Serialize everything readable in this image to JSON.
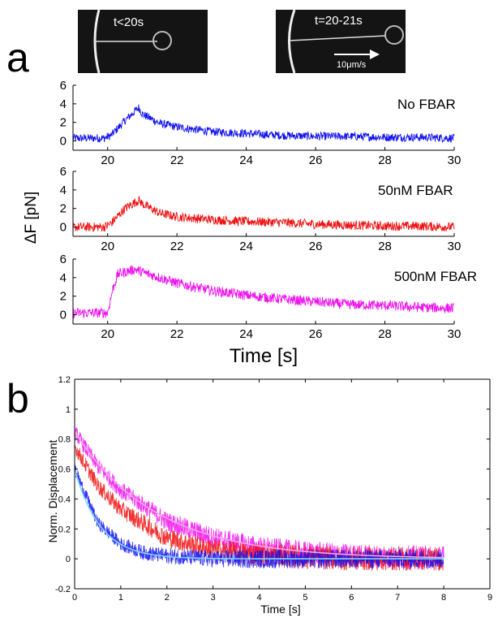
{
  "panel_letters": {
    "a": "a",
    "b": "b"
  },
  "micrographs": [
    {
      "label": "t<20s",
      "scale_label": ""
    },
    {
      "label": "t=20-21s",
      "scale_label": "10μm/s"
    }
  ],
  "colors": {
    "no_fbar": "#1010ee",
    "fbar_50nM": "#ee1111",
    "fbar_500nM": "#ee11ee",
    "fit_no_fbar": "#7ad7ff",
    "fit_500nM": "#f0a8e8",
    "axis": "#000000"
  },
  "chart_data": [
    {
      "type": "line",
      "condition_label": "No FBAR",
      "xlim": [
        19,
        30
      ],
      "ylim": [
        -1,
        6
      ],
      "xticks": [
        20,
        22,
        24,
        26,
        28,
        30
      ],
      "yticks": [
        0,
        2,
        4,
        6
      ],
      "baseline": 0.3,
      "peak_time": 20.9,
      "peak_value": 3.6,
      "noise": 0.45,
      "series": [
        {
          "x": [
            19.0,
            19.9,
            20.1,
            20.5,
            20.9,
            21.0,
            21.5,
            22.0,
            23.0,
            24.0,
            25.0,
            26.0,
            27.0,
            28.0,
            29.0,
            30.0
          ],
          "y": [
            0.3,
            0.3,
            0.6,
            2.2,
            3.6,
            2.9,
            1.9,
            1.5,
            1.0,
            0.8,
            0.6,
            0.5,
            0.5,
            0.4,
            0.4,
            0.3
          ]
        }
      ]
    },
    {
      "type": "line",
      "condition_label": "50nM FBAR",
      "ylabel": "ΔF [pN]",
      "xlim": [
        19,
        30
      ],
      "ylim": [
        -1,
        6
      ],
      "xticks": [
        20,
        22,
        24,
        26,
        28,
        30
      ],
      "yticks": [
        0,
        2,
        4,
        6
      ],
      "baseline": 0.0,
      "peak_time": 20.9,
      "peak_value": 2.9,
      "noise": 0.5,
      "series": [
        {
          "x": [
            19.0,
            19.9,
            20.1,
            20.5,
            20.9,
            21.0,
            21.5,
            22.0,
            23.0,
            24.0,
            25.0,
            26.0,
            27.0,
            28.0,
            29.0,
            30.0
          ],
          "y": [
            0.0,
            0.0,
            0.4,
            2.0,
            2.9,
            2.5,
            1.5,
            1.1,
            0.8,
            0.6,
            0.5,
            0.3,
            0.2,
            0.1,
            0.1,
            0.0
          ]
        }
      ]
    },
    {
      "type": "line",
      "condition_label": "500nM FBAR",
      "xlabel": "Time [s]",
      "xlim": [
        19,
        30
      ],
      "ylim": [
        -1,
        6
      ],
      "xticks": [
        20,
        22,
        24,
        26,
        28,
        30
      ],
      "yticks": [
        0,
        2,
        4,
        6
      ],
      "baseline": 0.2,
      "peak_time": 20.8,
      "peak_value": 4.9,
      "noise": 0.55,
      "series": [
        {
          "x": [
            19.0,
            20.0,
            20.15,
            20.3,
            20.8,
            21.0,
            22.0,
            23.0,
            24.0,
            25.0,
            26.0,
            27.0,
            28.0,
            29.0,
            30.0
          ],
          "y": [
            0.2,
            0.2,
            2.8,
            4.4,
            4.9,
            4.6,
            3.4,
            2.6,
            2.1,
            1.7,
            1.4,
            1.1,
            1.0,
            0.8,
            0.7
          ]
        }
      ]
    },
    {
      "type": "line",
      "xlabel": "Time [s]",
      "ylabel": "Norm. Displacement",
      "xlim": [
        0,
        9
      ],
      "ylim": [
        -0.2,
        1.2
      ],
      "xticks": [
        0,
        1,
        2,
        3,
        4,
        5,
        6,
        7,
        8,
        9
      ],
      "yticks": [
        -0.2,
        0,
        0.2,
        0.4,
        0.6,
        0.8,
        1,
        1.2
      ],
      "yticklabels": [
        "-0.2",
        "0",
        "0.2",
        "0.4",
        "0.6",
        "0.8",
        "1",
        "1.2"
      ],
      "x_max_data": 8,
      "series": [
        {
          "color_key": "fbar_500nM",
          "start": 0.85,
          "tau": 1.6,
          "noise": 0.05,
          "x": [
            0,
            0.5,
            1,
            2,
            3,
            4,
            5,
            6,
            7,
            8
          ],
          "y": [
            0.85,
            0.62,
            0.46,
            0.25,
            0.14,
            0.07,
            0.04,
            0.02,
            0.01,
            0.01
          ]
        },
        {
          "color_key": "fbar_50nM",
          "start": 0.75,
          "tau": 1.2,
          "noise": 0.05,
          "x": [
            0,
            0.5,
            1,
            2,
            3,
            4,
            5,
            6,
            7,
            8
          ],
          "y": [
            0.75,
            0.49,
            0.33,
            0.14,
            0.06,
            0.03,
            0.01,
            0.0,
            0.0,
            0.0
          ]
        },
        {
          "color_key": "no_fbar",
          "start": 0.6,
          "tau": 0.55,
          "noise": 0.04,
          "x": [
            0,
            0.5,
            1,
            1.5,
            2,
            3,
            4,
            5,
            6,
            7,
            8
          ],
          "y": [
            0.6,
            0.24,
            0.1,
            0.04,
            0.02,
            0.0,
            0.0,
            0.0,
            0.0,
            0.0,
            0.0
          ]
        }
      ],
      "fits": [
        {
          "color_key": "fit_500nM",
          "start": 0.85,
          "tau": 1.75
        },
        {
          "color_key": "fit_no_fbar",
          "start": 0.6,
          "tau": 0.55
        }
      ]
    }
  ]
}
